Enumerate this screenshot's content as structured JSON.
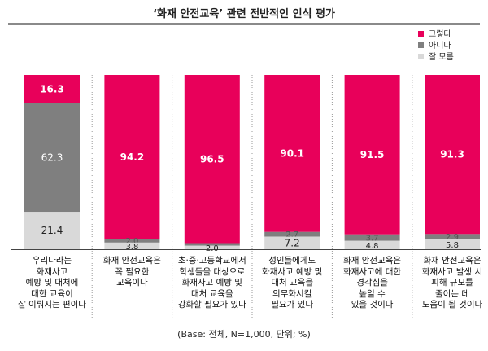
{
  "chart_data": {
    "type": "bar",
    "stacked": true,
    "orientation": "vertical",
    "title": "‘화재 안전교육’ 관련 전반적인 인식 평가",
    "note": "(Base: 전체, N=1,000, 단위; %)",
    "ylim": [
      0,
      100
    ],
    "grid": false,
    "legend_position": "top-right",
    "categories": [
      "우리나라는\n화재사고\n예방 및 대처에\n대한 교육이\n잘 이뤄지는 편이다",
      "화재 안전교육은\n꼭 필요한\n교육이다",
      "초·중·고등학교에서\n학생들을 대상으로\n화재사고 예방 및\n대처 교육을\n강화할 필요가 있다",
      "성인들에게도\n화재사고 예방 및\n대처 교육을\n의무화시킬\n필요가 있다",
      "화재 안전교육은\n화재사고에 대한\n경각심을\n높일 수\n있을 것이다",
      "화재 안전교육은\n화재사고 발생 시\n피해 규모를\n줄이는 데\n도움이 될 것이다"
    ],
    "series": [
      {
        "name": "그렇다",
        "color": "#e8005a",
        "values": [
          16.3,
          94.2,
          96.5,
          90.1,
          91.5,
          91.3
        ]
      },
      {
        "name": "아니다",
        "color": "#7f7f7f",
        "values": [
          62.3,
          2.0,
          1.5,
          2.7,
          3.7,
          2.9
        ]
      },
      {
        "name": "잘 모름",
        "color": "#d9d9d9",
        "values": [
          21.4,
          3.8,
          2.0,
          7.2,
          4.8,
          5.8
        ]
      }
    ],
    "data_labels": [
      [
        "16.3",
        "94.2",
        "96.5",
        "90.1",
        "91.5",
        "91.3"
      ],
      [
        "62.3",
        "2.0",
        "",
        "2.7",
        "3.7",
        "2.9"
      ],
      [
        "21.4",
        "3.8",
        "2.0",
        "7.2",
        "4.8",
        "5.8"
      ]
    ]
  }
}
